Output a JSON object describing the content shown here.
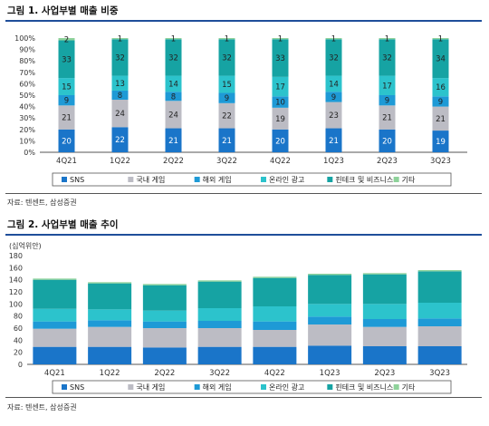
{
  "colors": {
    "rule": "#1f4e9a",
    "series": [
      "#1a75c9",
      "#bcbcc4",
      "#1e9ad6",
      "#2cc3cc",
      "#16a3a3",
      "#8ed29a"
    ]
  },
  "figure1": {
    "title": "그림 1. 사업부별 매출 비중",
    "source": "자료: 텐센트, 삼성증권",
    "chart_data": {
      "type": "bar",
      "stacked": true,
      "percent": true,
      "categories": [
        "4Q21",
        "1Q22",
        "2Q22",
        "3Q22",
        "4Q22",
        "1Q23",
        "2Q23",
        "3Q23"
      ],
      "series": [
        {
          "name": "SNS",
          "values": [
            20,
            22,
            21,
            21,
            20,
            21,
            20,
            19
          ]
        },
        {
          "name": "국내 게임",
          "values": [
            21,
            24,
            24,
            22,
            19,
            23,
            21,
            21
          ]
        },
        {
          "name": "해외 게임",
          "values": [
            9,
            8,
            8,
            9,
            10,
            9,
            9,
            9
          ]
        },
        {
          "name": "온라인 광고",
          "values": [
            15,
            13,
            14,
            15,
            17,
            14,
            17,
            16
          ]
        },
        {
          "name": "핀테크 및 비즈니스",
          "values": [
            33,
            32,
            32,
            32,
            33,
            32,
            32,
            34
          ]
        },
        {
          "name": "기타",
          "values": [
            2,
            1,
            1,
            1,
            1,
            1,
            1,
            1
          ]
        }
      ],
      "ylim": [
        0,
        100
      ],
      "yticks": [
        "0%",
        "10%",
        "20%",
        "30%",
        "40%",
        "50%",
        "60%",
        "70%",
        "80%",
        "90%",
        "100%"
      ],
      "legend": "bottom"
    }
  },
  "figure2": {
    "title": "그림 2. 사업부별 매출 추이",
    "unit": "(십억위안)",
    "source": "자료: 텐센트, 삼성증권",
    "chart_data": {
      "type": "bar",
      "stacked": true,
      "categories": [
        "4Q21",
        "1Q22",
        "2Q22",
        "3Q22",
        "4Q22",
        "1Q23",
        "2Q23",
        "3Q23"
      ],
      "series": [
        {
          "name": "SNS",
          "values": [
            29,
            29,
            28,
            29,
            29,
            31,
            30,
            30
          ]
        },
        {
          "name": "국내 게임",
          "values": [
            30,
            33,
            32,
            31,
            28,
            35,
            32,
            33
          ]
        },
        {
          "name": "해외 게임",
          "values": [
            12,
            11,
            11,
            12,
            14,
            13,
            13,
            13
          ]
        },
        {
          "name": "온라인 광고",
          "values": [
            21,
            18,
            18,
            21,
            25,
            21,
            25,
            26
          ]
        },
        {
          "name": "핀테크 및 비즈니스",
          "values": [
            48,
            43,
            42,
            44,
            47,
            48,
            49,
            52
          ]
        },
        {
          "name": "기타",
          "values": [
            2,
            2,
            2,
            2,
            2,
            2,
            2,
            2
          ]
        }
      ],
      "ylim": [
        0,
        180
      ],
      "yticks": [
        "0",
        "20",
        "40",
        "60",
        "80",
        "100",
        "120",
        "140",
        "160",
        "180"
      ],
      "legend": "bottom"
    }
  }
}
